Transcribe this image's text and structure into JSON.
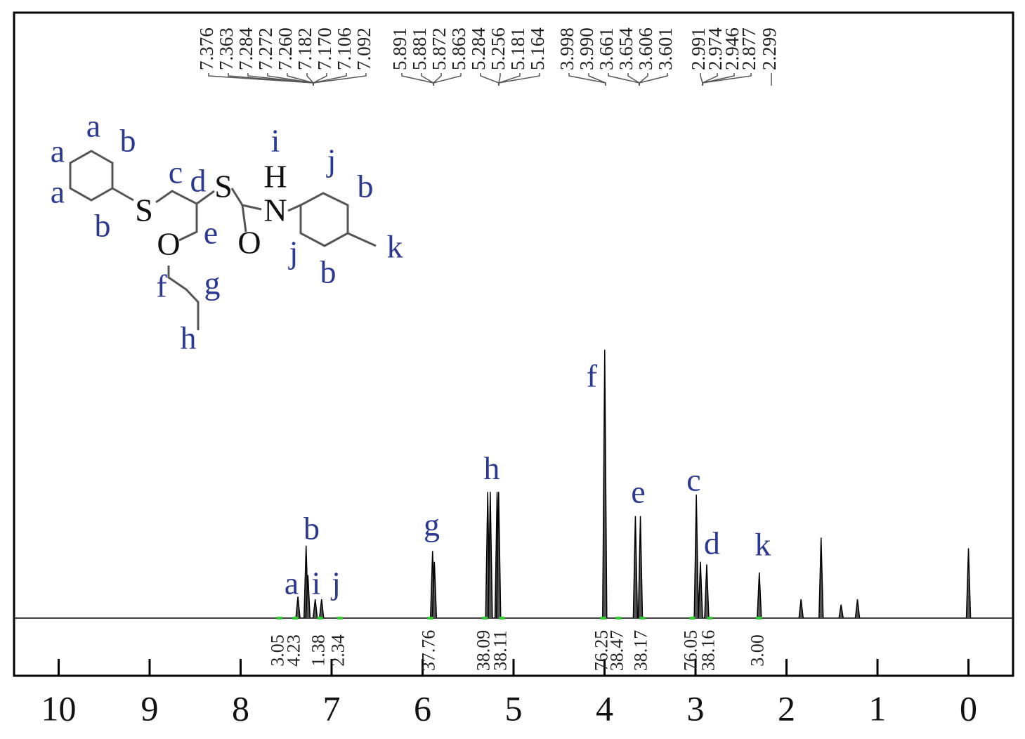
{
  "chart_data": {
    "type": "nmr",
    "color": "#000000",
    "xlim": [
      10.49,
      -0.49
    ],
    "ylim": [
      -21.5,
      225.6
    ],
    "xticks": [
      10,
      9,
      8,
      7,
      6,
      5,
      4,
      3,
      2,
      1,
      0
    ],
    "x": [
      7.37,
      7.28,
      7.26,
      7.18,
      7.11,
      5.89,
      5.87,
      5.284,
      5.256,
      5.181,
      5.164,
      3.998,
      3.661,
      3.606,
      2.991,
      2.946,
      2.877,
      2.299,
      1.84,
      1.62,
      1.4,
      1.22,
      0.0
    ],
    "values": [
      8,
      27,
      16,
      7,
      7,
      25,
      21,
      47,
      47,
      47,
      47,
      100,
      38,
      38,
      46,
      21,
      20,
      17,
      7,
      30,
      5,
      7,
      26
    ],
    "shift_labels": [
      "7.376",
      "7.363",
      "7.284",
      "7.272",
      "7.260",
      "7.182",
      "7.170",
      "7.106",
      "7.092",
      "5.891",
      "5.881",
      "5.872",
      "5.863",
      "5.284",
      "5.256",
      "5.181",
      "5.164",
      "3.998",
      "3.990",
      "3.661",
      "3.654",
      "3.606",
      "3.601",
      "2.991",
      "2.974",
      "2.946",
      "2.877",
      "2.299"
    ],
    "integrals": {
      "x": [
        7.575,
        7.398,
        7.127,
        6.911,
        5.915,
        5.313,
        5.127,
        4.015,
        3.846,
        3.583,
        3.035,
        2.842,
        2.301
      ],
      "values": [
        3.05,
        4.23,
        1.38,
        2.34,
        37.76,
        38.09,
        38.11,
        76.25,
        38.47,
        38.17,
        76.05,
        38.16,
        3.0
      ],
      "value_labels": [
        "3.05",
        "4.23",
        "1.38",
        "2.34",
        "37.76",
        "38.09",
        "38.11",
        "76.25",
        "38.47",
        "38.17",
        "76.05",
        "38.16",
        "3.00"
      ],
      "color": "#33cc33"
    },
    "annotations": [
      {
        "text": "a",
        "x": 7.44,
        "y": 11.8
      },
      {
        "text": "b",
        "x": 7.22,
        "y": 32.2
      },
      {
        "text": "i",
        "x": 7.17,
        "y": 11.8
      },
      {
        "text": "j",
        "x": 6.95,
        "y": 11.8
      },
      {
        "text": "g",
        "x": 5.9,
        "y": 33.5
      },
      {
        "text": "h",
        "x": 5.24,
        "y": 54.5
      },
      {
        "text": "f",
        "x": 4.14,
        "y": 89.0
      },
      {
        "text": "e",
        "x": 3.63,
        "y": 45.8
      },
      {
        "text": "c",
        "x": 3.02,
        "y": 50.3
      },
      {
        "text": "d",
        "x": 2.82,
        "y": 26.7
      },
      {
        "text": "k",
        "x": 2.26,
        "y": 26.2
      }
    ]
  },
  "structure": {
    "labels": [
      "a",
      "b",
      "a",
      "a",
      "b",
      "S",
      "c",
      "d",
      "S",
      "i",
      "H",
      "N",
      "j",
      "b",
      "O",
      "O",
      "e",
      "j",
      "k",
      "b",
      "f",
      "g",
      "h"
    ]
  }
}
